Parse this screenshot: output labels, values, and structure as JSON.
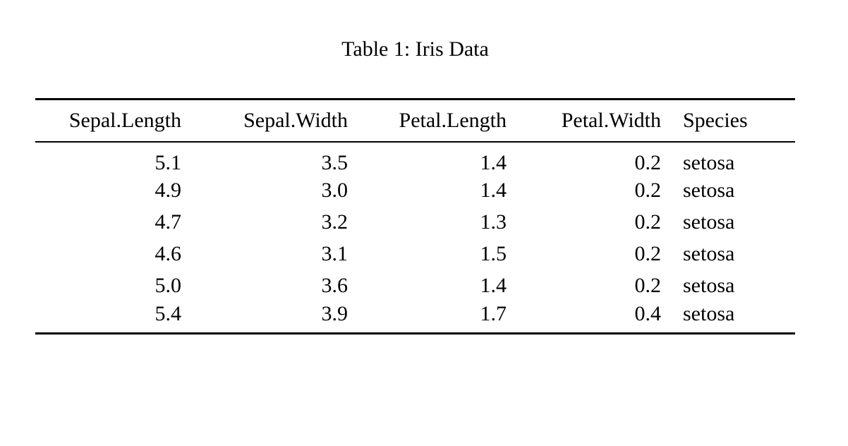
{
  "caption": "Table 1: Iris Data",
  "table": {
    "columns": [
      {
        "label": "Sepal.Length",
        "align": "right"
      },
      {
        "label": "Sepal.Width",
        "align": "right"
      },
      {
        "label": "Petal.Length",
        "align": "right"
      },
      {
        "label": "Petal.Width",
        "align": "right"
      },
      {
        "label": "Species",
        "align": "left"
      }
    ],
    "rows": [
      [
        "5.1",
        "3.5",
        "1.4",
        "0.2",
        "setosa"
      ],
      [
        "4.9",
        "3.0",
        "1.4",
        "0.2",
        "setosa"
      ],
      [
        "4.7",
        "3.2",
        "1.3",
        "0.2",
        "setosa"
      ],
      [
        "4.6",
        "3.1",
        "1.5",
        "0.2",
        "setosa"
      ],
      [
        "5.0",
        "3.6",
        "1.4",
        "0.2",
        "setosa"
      ],
      [
        "5.4",
        "3.9",
        "1.7",
        "0.4",
        "setosa"
      ]
    ]
  },
  "colors": {
    "text": "#000000",
    "background": "#ffffff",
    "rule": "#000000"
  }
}
